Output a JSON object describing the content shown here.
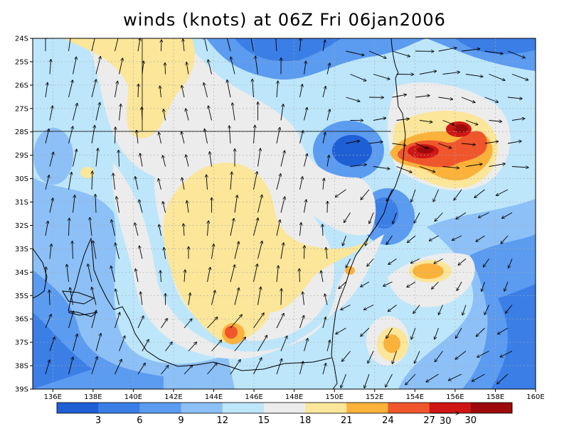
{
  "title": "winds (knots) at 06Z Fri 06jan2006",
  "map": {
    "lon_range": [
      135,
      160
    ],
    "lat_range": [
      -39,
      -24
    ],
    "lon_ticks": [
      "136E",
      "138E",
      "140E",
      "142E",
      "144E",
      "146E",
      "148E",
      "150E",
      "152E",
      "154E",
      "156E",
      "158E",
      "160E"
    ],
    "lat_ticks": [
      "24S",
      "25S",
      "26S",
      "27S",
      "28S",
      "29S",
      "30S",
      "31S",
      "32S",
      "33S",
      "34S",
      "35S",
      "36S",
      "37S",
      "38S",
      "39S"
    ],
    "grid": true
  },
  "colorbar": {
    "labels": [
      "3",
      "6",
      "9",
      "12",
      "15",
      "18",
      "21",
      "24",
      "27",
      "30"
    ],
    "colors": [
      "#1f5fd6",
      "#3b7ee6",
      "#5b9bf0",
      "#8cc0f7",
      "#bde6fb",
      "#ececec",
      "#fbe69a",
      "#fbb23b",
      "#f0562c",
      "#cf1616",
      "#9c0a0a"
    ]
  },
  "reference_vector": {
    "label": "30"
  },
  "wind_field": {
    "cells": [
      {
        "lon": 136.0,
        "lat": -25.0,
        "speed": 10
      },
      {
        "lon": 138.5,
        "lat": -25.0,
        "speed": 20
      },
      {
        "lon": 141.0,
        "lat": -25.0,
        "speed": 21
      },
      {
        "lon": 143.5,
        "lat": -25.0,
        "speed": 17
      },
      {
        "lon": 146.0,
        "lat": -25.0,
        "speed": 9
      },
      {
        "lon": 148.5,
        "lat": -25.0,
        "speed": 11
      },
      {
        "lon": 151.0,
        "lat": -25.0,
        "speed": 8
      },
      {
        "lon": 153.5,
        "lat": -25.0,
        "speed": 13
      },
      {
        "lon": 156.0,
        "lat": -25.0,
        "speed": 8
      },
      {
        "lon": 158.5,
        "lat": -25.0,
        "speed": 6
      },
      {
        "lon": 136.0,
        "lat": -27.5,
        "speed": 12
      },
      {
        "lon": 138.5,
        "lat": -27.5,
        "speed": 16
      },
      {
        "lon": 141.0,
        "lat": -27.5,
        "speed": 20
      },
      {
        "lon": 143.5,
        "lat": -27.5,
        "speed": 18
      },
      {
        "lon": 146.0,
        "lat": -27.5,
        "speed": 17
      },
      {
        "lon": 148.5,
        "lat": -27.5,
        "speed": 14
      },
      {
        "lon": 151.0,
        "lat": -27.5,
        "speed": 8
      },
      {
        "lon": 153.5,
        "lat": -27.5,
        "speed": 15
      },
      {
        "lon": 156.0,
        "lat": -27.5,
        "speed": 26
      },
      {
        "lon": 158.5,
        "lat": -27.5,
        "speed": 13
      },
      {
        "lon": 136.0,
        "lat": -30.0,
        "speed": 11
      },
      {
        "lon": 138.5,
        "lat": -30.0,
        "speed": 16
      },
      {
        "lon": 141.0,
        "lat": -30.0,
        "speed": 17
      },
      {
        "lon": 143.5,
        "lat": -30.0,
        "speed": 20
      },
      {
        "lon": 146.0,
        "lat": -30.0,
        "speed": 21
      },
      {
        "lon": 148.5,
        "lat": -30.0,
        "speed": 18
      },
      {
        "lon": 151.0,
        "lat": -30.0,
        "speed": 16
      },
      {
        "lon": 153.5,
        "lat": -30.0,
        "speed": 27
      },
      {
        "lon": 156.0,
        "lat": -30.0,
        "speed": 22
      },
      {
        "lon": 158.5,
        "lat": -30.0,
        "speed": 11
      },
      {
        "lon": 136.0,
        "lat": -32.5,
        "speed": 9
      },
      {
        "lon": 138.5,
        "lat": -32.5,
        "speed": 13
      },
      {
        "lon": 141.0,
        "lat": -32.5,
        "speed": 17
      },
      {
        "lon": 143.5,
        "lat": -32.5,
        "speed": 21
      },
      {
        "lon": 146.0,
        "lat": -32.5,
        "speed": 21
      },
      {
        "lon": 148.5,
        "lat": -32.5,
        "speed": 18
      },
      {
        "lon": 151.0,
        "lat": -32.5,
        "speed": 9
      },
      {
        "lon": 153.5,
        "lat": -32.5,
        "speed": 12
      },
      {
        "lon": 156.0,
        "lat": -32.5,
        "speed": 14
      },
      {
        "lon": 158.5,
        "lat": -32.5,
        "speed": 9
      },
      {
        "lon": 136.0,
        "lat": -35.0,
        "speed": 8
      },
      {
        "lon": 138.5,
        "lat": -35.0,
        "speed": 10
      },
      {
        "lon": 141.0,
        "lat": -35.0,
        "speed": 16
      },
      {
        "lon": 143.5,
        "lat": -35.0,
        "speed": 21
      },
      {
        "lon": 146.0,
        "lat": -35.0,
        "speed": 20
      },
      {
        "lon": 148.5,
        "lat": -35.0,
        "speed": 16
      },
      {
        "lon": 151.0,
        "lat": -35.0,
        "speed": 11
      },
      {
        "lon": 153.5,
        "lat": -35.0,
        "speed": 19
      },
      {
        "lon": 156.0,
        "lat": -35.0,
        "speed": 13
      },
      {
        "lon": 158.5,
        "lat": -35.0,
        "speed": 8
      },
      {
        "lon": 136.0,
        "lat": -37.5,
        "speed": 6
      },
      {
        "lon": 138.5,
        "lat": -37.5,
        "speed": 9
      },
      {
        "lon": 141.0,
        "lat": -37.5,
        "speed": 14
      },
      {
        "lon": 143.5,
        "lat": -37.5,
        "speed": 18
      },
      {
        "lon": 146.0,
        "lat": -37.5,
        "speed": 22
      },
      {
        "lon": 148.5,
        "lat": -37.5,
        "speed": 16
      },
      {
        "lon": 151.0,
        "lat": -37.5,
        "speed": 10
      },
      {
        "lon": 153.5,
        "lat": -37.5,
        "speed": 19
      },
      {
        "lon": 156.0,
        "lat": -37.5,
        "speed": 10
      },
      {
        "lon": 158.5,
        "lat": -37.5,
        "speed": 7
      }
    ]
  }
}
